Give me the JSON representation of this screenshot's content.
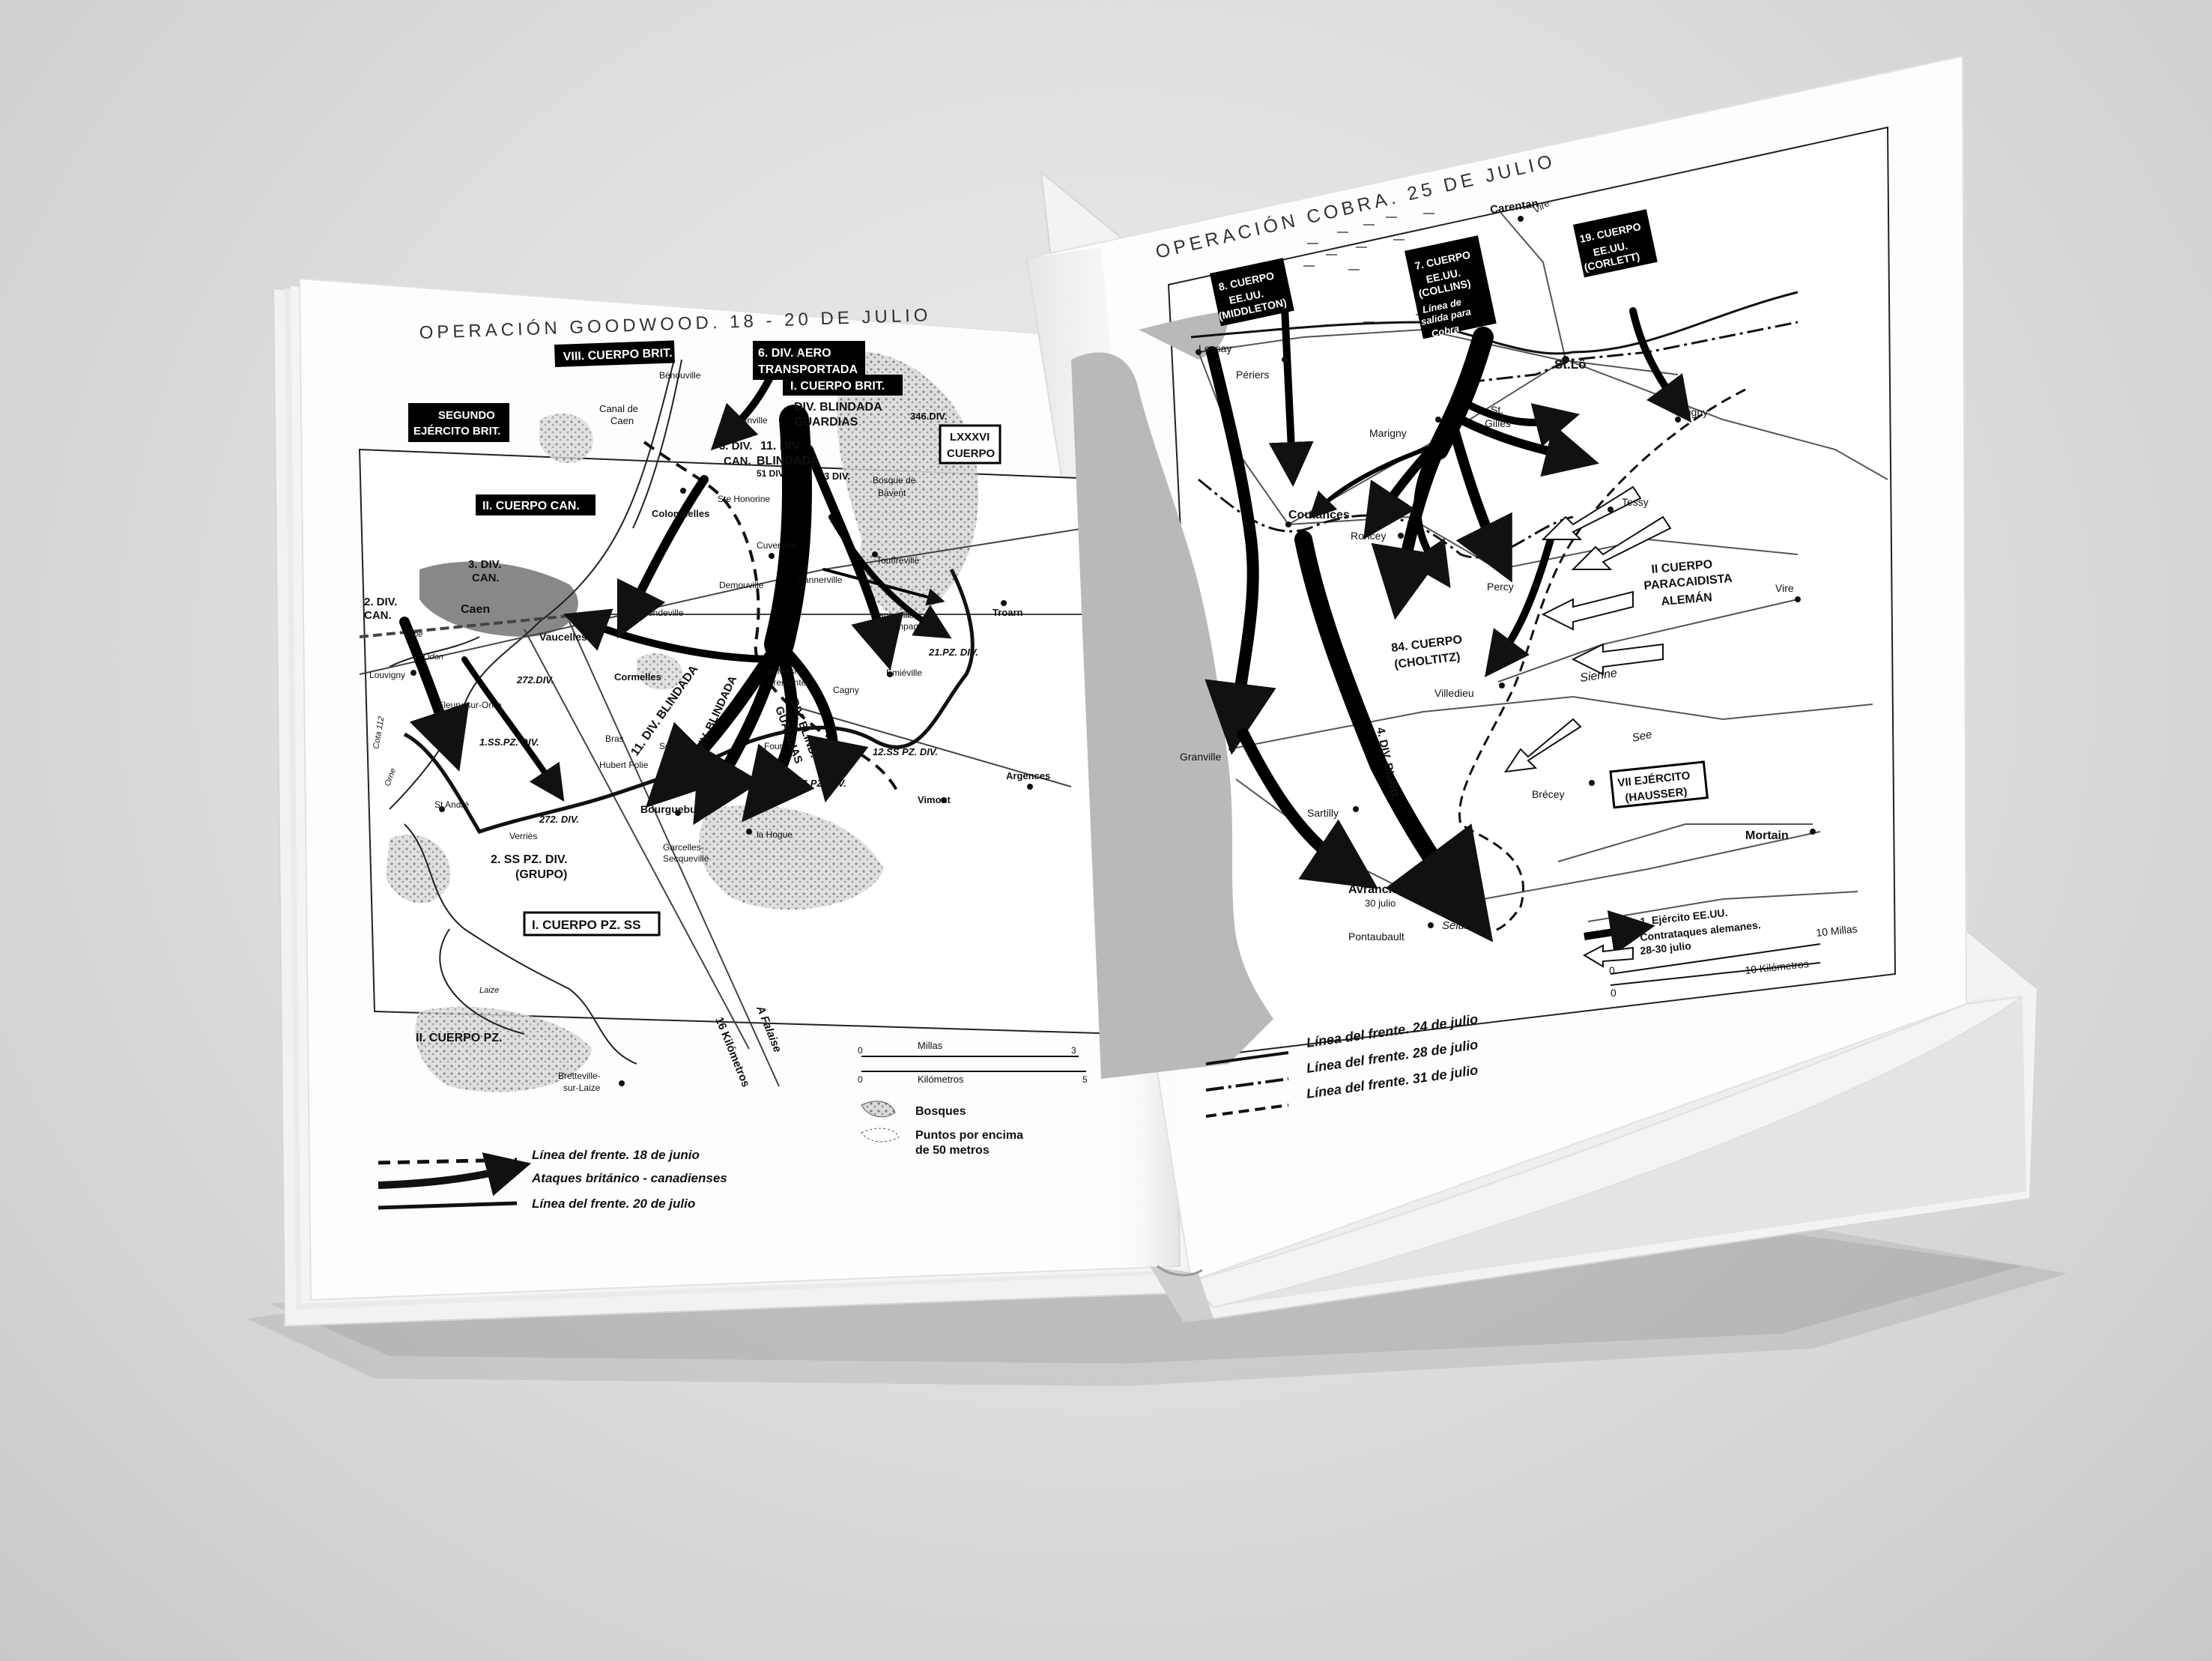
{
  "colors": {
    "background": "#dcdcdc",
    "page": "#ffffff",
    "ink": "#111111",
    "sea": "#b9b9b9",
    "woods": "#9a9a9a"
  },
  "left_map": {
    "title": "OPERACIÓN GOODWOOD. 18 - 20 DE JULIO",
    "unit_boxes": {
      "viii_cuerpo": "VIII. CUERPO BRIT.",
      "div6_l1": "6. DIV. AERO",
      "div6_l2": "TRANSPORTADA",
      "i_cuerpo": "I. CUERPO BRIT.",
      "segundo_l1": "SEGUNDO",
      "segundo_l2": "EJÉRCITO BRIT.",
      "ii_cuerpo_can": "II. CUERPO CAN.",
      "lxxxvi_l1": "LXXXVI",
      "lxxxvi_l2": "CUERPO",
      "i_cuerpo_pz": "I. CUERPO PZ. SS"
    },
    "unit_labels": {
      "div_blindada_l1": "DIV. BLINDADA",
      "div_blindada_l2": "GUARDIAS",
      "div3_can_l1": "3. DIV.",
      "div3_can_l2": "CAN.",
      "div11_l1": "11. DIV.",
      "div11_l2": "BLINDADA",
      "div3": "3 DIV.",
      "div346": "346.DIV.",
      "div51": "51 DIV.",
      "div3can_b_l1": "3. DIV.",
      "div3can_b_l2": "CAN.",
      "div2can_l1": "2. DIV.",
      "div2can_l2": "CAN.",
      "div21pz": "21.PZ. DIV.",
      "div272_a": "272.DIV.",
      "ss1pz_a": "1.SS.PZ. DIV.",
      "div11_arrow": "11. DIV. BLINDADA",
      "div7_arrow": "7. DIV. BLINDADA",
      "guardias_arrow_l1": "DIV. BLIND.",
      "guardias_arrow_l2": "GUARDIAS",
      "ss12pz": "12.SS PZ. DIV.",
      "ss1pz_b": "1.SS PZ. DIV.",
      "div272_b": "272. DIV.",
      "ss2pz_l1": "2. SS PZ. DIV.",
      "ss2pz_l2": "(GRUPO)",
      "ii_cuerpo_pz": "II. CUERPO PZ."
    },
    "places": {
      "benouville": "Bénouville",
      "ranville": "Ranville",
      "canal_l1": "Canal de",
      "canal_l2": "Caen",
      "ste_honorine": "Ste Honorine",
      "colombelles": "Colombelles",
      "bosque_l1": "Bosque de",
      "bosque_l2": "Bavent",
      "cuverville": "Cuverville",
      "touffreville": "Touffreville",
      "demouville": "Demouville",
      "sannerville": "Sannerville",
      "banneville_l1": "Banneville",
      "banneville_l2": "la Campagne",
      "troarn": "Troarn",
      "caen": "Caen",
      "mondeville": "Mondeville",
      "vaucelles": "Vaucelles",
      "emieville": "Emiéville",
      "le_mesnil_l1": "le Mesnil",
      "le_mesnil_l2": "Frementel",
      "cagny": "Cagny",
      "cormelles": "Cormelles",
      "louvigny": "Louvigny",
      "fleury": "Fleury-sur-Orne",
      "odon": "Odon",
      "orne_a": "Orne",
      "orne_b": "Orne",
      "cota": "Cota 112",
      "bras": "Bras",
      "hubert_folie": "Hubert Folie",
      "soliers": "Soliers",
      "four": "Four",
      "argences": "Argences",
      "bourguebus": "Bourguebus",
      "vimont": "Vimont",
      "st_andre": "St André",
      "verrieres": "Verriès",
      "la_hogue": "la Hogue",
      "garcelles_l1": "Garcelles-",
      "garcelles_l2": "Secqueville",
      "laize": "Laize",
      "bretteville_l1": "Bretteville-",
      "bretteville_l2": "sur-Laize",
      "road_16": "16 Kilómetros",
      "road_falaise": "A Falaise"
    },
    "scale": {
      "millas": "Millas",
      "kilometros": "Kilómetros",
      "zero_a": "0",
      "zero_b": "0",
      "three": "3",
      "five": "5"
    },
    "legend": {
      "frente_18": "Línea del frente. 18 de junio",
      "ataques": "Ataques británico - canadienses",
      "frente_20": "Línea del frente. 20 de julio",
      "bosques": "Bosques",
      "puntos_l1": "Puntos por encima",
      "puntos_l2": "de 50 metros"
    }
  },
  "right_map": {
    "title": "OPERACIÓN COBRA. 25 DE JULIO",
    "unit_boxes": {
      "c8_l1": "8. CUERPO",
      "c8_l2": "EE.UU.",
      "c8_l3": "(MIDDLETON)",
      "c7_l1": "7. CUERPO",
      "c7_l2": "EE.UU.",
      "c7_l3": "(COLLINS)",
      "c19_l1": "19. CUERPO",
      "c19_l2": "EE.UU.",
      "c19_l3": "(CORLETT)",
      "vii_l1": "VII EJÉRCITO",
      "vii_l2": "(HAUSSER)"
    },
    "labels": {
      "linea_l1": "Línea de",
      "linea_l2": "salida para",
      "linea_l3": "Cobra",
      "ii_cuerpo_l1": "II CUERPO",
      "ii_cuerpo_l2": "PARACAIDISTA",
      "ii_cuerpo_l3": "ALEMÁN",
      "c84_l1": "84. CUERPO",
      "c84_l2": "(CHOLTITZ)",
      "div4": "4. DIV. BLIND."
    },
    "places": {
      "carentan": "Carentan",
      "vire_river": "Vire",
      "lessay": "Lessay",
      "periers": "Périers",
      "st_lo": "St.Lô",
      "marigny": "Marigny",
      "st_gilles_l1": "St.",
      "st_gilles_l2": "Gilles",
      "torigny": "Torigny",
      "coutances": "Coutances",
      "tessy": "Tessy",
      "roncey": "Roncey",
      "percy": "Percy",
      "vire_town": "Vire",
      "villedieu": "Villedieu",
      "sienne": "Sienne",
      "granville": "Granville",
      "sartilly": "Sartilly",
      "see": "See",
      "brecey": "Brécey",
      "mortain": "Mortain",
      "avranches": "Avranches",
      "julio30": "30 julio",
      "pontaubault": "Pontaubault",
      "selune": "Sélune"
    },
    "legend": {
      "ejercito": "1. Ejército EE.UU.",
      "contra_l1": "Contrataques alemanes.",
      "contra_l2": "28-30 julio",
      "millas": "10 Millas",
      "kilometros": "10 Kilómetros",
      "zero_a": "0",
      "zero_b": "0",
      "frente_24": "Línea del frente. 24 de julio",
      "frente_28": "Línea del frente. 28 de julio",
      "frente_31": "Línea del frente. 31 de julio"
    }
  }
}
